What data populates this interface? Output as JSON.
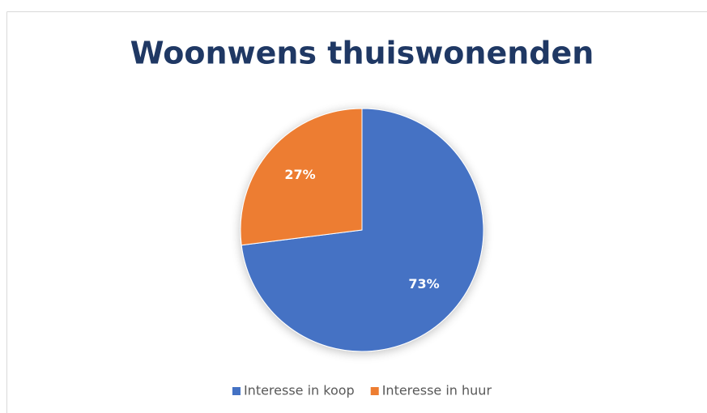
{
  "chart_data": {
    "type": "pie",
    "title": "Woonwens thuiswonenden",
    "categories": [
      "Interesse in koop",
      "Interesse in huur"
    ],
    "values": [
      73,
      27
    ],
    "value_labels": [
      "73%",
      "27%"
    ],
    "colors": [
      "#4472c4",
      "#ed7d31"
    ],
    "legend": "bottom"
  }
}
